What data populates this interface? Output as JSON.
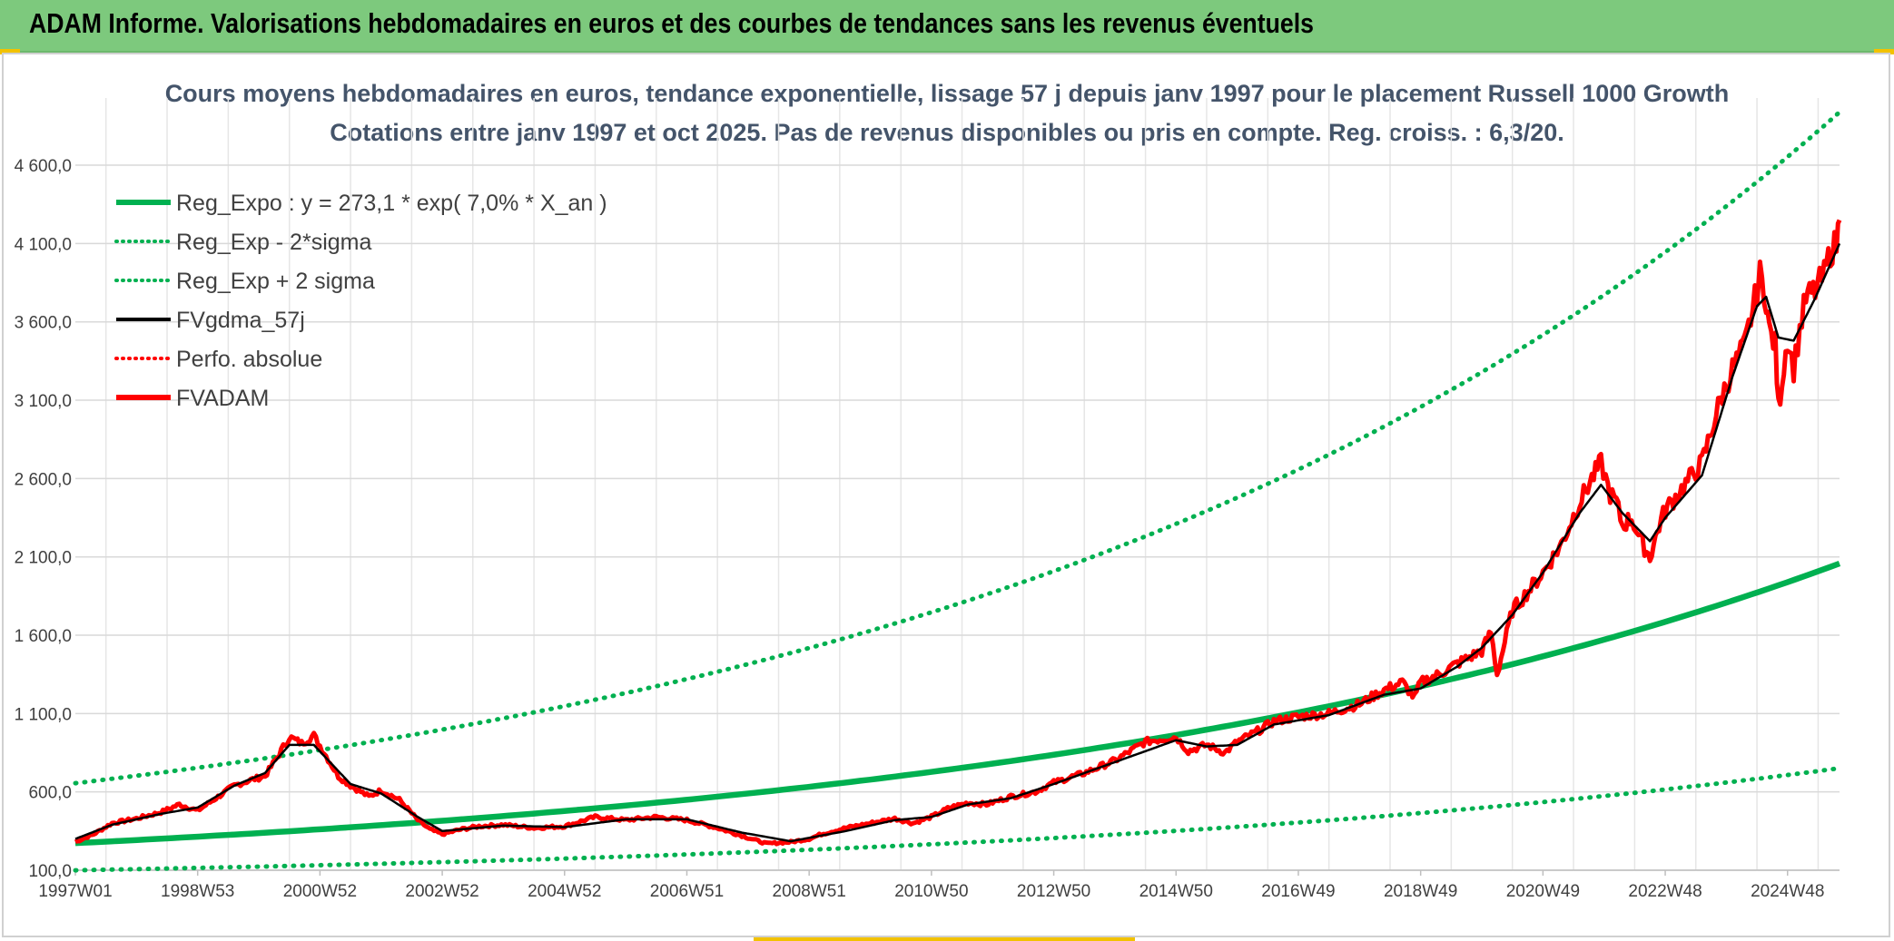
{
  "header": {
    "title": "ADAM Informe. Valorisations hebdomadaires en euros et des courbes de tendances sans les revenus éventuels"
  },
  "chart_data": {
    "type": "line",
    "title": "Cours moyens hebdomadaires en euros, tendance exponentielle, lissage 57 j depuis janv 1997 pour le placement Russell 1000 Growth",
    "subtitle": "Cotations entre janv 1997 et oct 2025. Pas de revenus disponibles ou pris en compte. Reg. croiss. : 6,3/20.",
    "xlabel": "",
    "ylabel": "",
    "ylim": [
      100,
      5000
    ],
    "xlim": [
      1997.0,
      2025.85
    ],
    "y_ticks": [
      "100,0",
      "600,0",
      "1 100,0",
      "1 600,0",
      "2 100,0",
      "2 600,0",
      "3 100,0",
      "3 600,0",
      "4 100,0",
      "4 600,0"
    ],
    "y_tick_values": [
      100,
      600,
      1100,
      1600,
      2100,
      2600,
      3100,
      3600,
      4100,
      4600
    ],
    "x_ticks": [
      "1997W01",
      "1998W53",
      "2000W52",
      "2002W52",
      "2004W52",
      "2006W51",
      "2008W51",
      "2010W50",
      "2012W50",
      "2014W50",
      "2016W49",
      "2018W49",
      "2020W49",
      "2022W48",
      "2024W48"
    ],
    "x_tick_values": [
      1997.0,
      1999.0,
      2001.0,
      2003.0,
      2005.0,
      2007.0,
      2009.0,
      2011.0,
      2013.0,
      2015.0,
      2017.0,
      2019.0,
      2021.0,
      2023.0,
      2025.0
    ],
    "grid": true,
    "legend_position": "top-left",
    "regression": {
      "a": 273.1,
      "rate": 0.07,
      "lower_factor": 0.365,
      "upper_factor": 2.4
    },
    "legend": [
      {
        "name": "Reg_Expo : y = 273,1 * exp( 7,0% *  X_an )",
        "color": "#00b050",
        "style": "solid-thick"
      },
      {
        "name": "Reg_Exp - 2*sigma",
        "color": "#00b050",
        "style": "dotted"
      },
      {
        "name": "Reg_Exp + 2 sigma",
        "color": "#00b050",
        "style": "dotted"
      },
      {
        "name": "FVgdma_57j",
        "color": "#000000",
        "style": "solid"
      },
      {
        "name": "Perfo. absolue",
        "color": "#ff0000",
        "style": "dotted"
      },
      {
        "name": "FVADAM",
        "color": "#ff0000",
        "style": "solid-thick"
      }
    ],
    "series": [
      {
        "name": "FVADAM",
        "x": [
          1997.0,
          1997.3,
          1997.6,
          1998.0,
          1998.4,
          1998.7,
          1999.0,
          1999.3,
          1999.6,
          1999.9,
          2000.1,
          2000.3,
          2000.5,
          2000.7,
          2000.9,
          2001.1,
          2001.3,
          2001.5,
          2001.8,
          2002.0,
          2002.3,
          2002.6,
          2002.8,
          2003.0,
          2003.3,
          2003.6,
          2004.0,
          2004.5,
          2005.0,
          2005.5,
          2006.0,
          2006.5,
          2007.0,
          2007.5,
          2007.9,
          2008.3,
          2008.7,
          2009.0,
          2009.2,
          2009.6,
          2010.0,
          2010.4,
          2010.7,
          2011.0,
          2011.3,
          2011.6,
          2011.9,
          2012.3,
          2012.7,
          2013.0,
          2013.5,
          2014.0,
          2014.5,
          2015.0,
          2015.2,
          2015.5,
          2015.8,
          2016.0,
          2016.3,
          2016.6,
          2017.0,
          2017.5,
          2018.0,
          2018.4,
          2018.7,
          2018.9,
          2019.0,
          2019.3,
          2019.6,
          2020.0,
          2020.15,
          2020.25,
          2020.5,
          2020.8,
          2021.0,
          2021.3,
          2021.6,
          2021.8,
          2021.95,
          2022.1,
          2022.2,
          2022.3,
          2022.45,
          2022.6,
          2022.75,
          2022.9,
          2023.0,
          2023.3,
          2023.6,
          2023.9,
          2024.1,
          2024.3,
          2024.5,
          2024.55,
          2024.65,
          2024.7,
          2024.8,
          2024.85,
          2025.0,
          2025.1,
          2025.2,
          2025.3,
          2025.45,
          2025.6,
          2025.7,
          2025.8,
          2025.85
        ],
        "y": [
          280,
          330,
          400,
          430,
          470,
          520,
          480,
          560,
          640,
          680,
          700,
          820,
          950,
          910,
          960,
          830,
          700,
          640,
          570,
          610,
          550,
          420,
          360,
          330,
          360,
          380,
          390,
          370,
          380,
          440,
          420,
          440,
          420,
          370,
          320,
          270,
          280,
          300,
          330,
          370,
          400,
          430,
          400,
          440,
          500,
          530,
          520,
          570,
          600,
          660,
          720,
          800,
          920,
          950,
          860,
          900,
          850,
          920,
          980,
          1050,
          1080,
          1100,
          1160,
          1250,
          1300,
          1200,
          1300,
          1350,
          1420,
          1500,
          1620,
          1350,
          1760,
          1900,
          2000,
          2180,
          2450,
          2600,
          2700,
          2500,
          2450,
          2300,
          2350,
          2200,
          2100,
          2300,
          2400,
          2550,
          2700,
          3100,
          3300,
          3450,
          3800,
          3900,
          3750,
          3550,
          3450,
          3050,
          3500,
          3300,
          3550,
          3750,
          3800,
          3900,
          4050,
          4100,
          4250
        ]
      },
      {
        "name": "FVgdma_57j",
        "x": [
          1997.0,
          1997.6,
          1998.4,
          1999.0,
          1999.6,
          2000.1,
          2000.5,
          2000.9,
          2001.5,
          2002.0,
          2002.6,
          2003.0,
          2004.0,
          2005.0,
          2006.0,
          2007.0,
          2007.9,
          2008.7,
          2009.6,
          2010.4,
          2011.0,
          2011.6,
          2012.3,
          2013.0,
          2014.0,
          2015.0,
          2015.5,
          2016.0,
          2016.6,
          2017.5,
          2018.4,
          2019.0,
          2019.6,
          2020.0,
          2020.5,
          2021.0,
          2021.6,
          2021.95,
          2022.3,
          2022.75,
          2023.0,
          2023.6,
          2024.1,
          2024.5,
          2024.65,
          2024.85,
          2025.1,
          2025.45,
          2025.85
        ],
        "y": [
          300,
          390,
          460,
          500,
          640,
          720,
          900,
          900,
          650,
          590,
          440,
          350,
          385,
          375,
          425,
          425,
          340,
          285,
          350,
          420,
          440,
          520,
          560,
          650,
          790,
          930,
          890,
          900,
          1030,
          1090,
          1220,
          1260,
          1400,
          1520,
          1730,
          2000,
          2380,
          2560,
          2380,
          2200,
          2350,
          2620,
          3250,
          3700,
          3760,
          3500,
          3480,
          3750,
          4100
        ]
      }
    ]
  }
}
